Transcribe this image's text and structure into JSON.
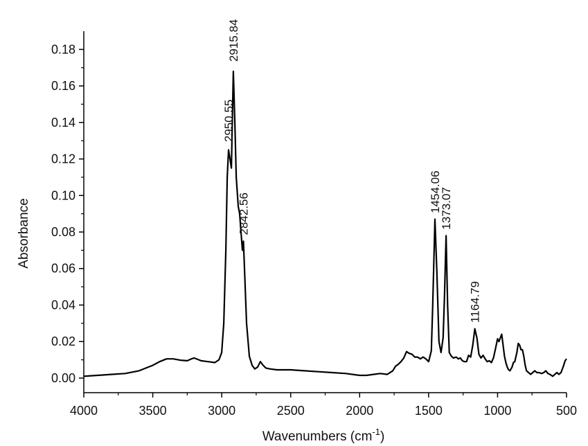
{
  "chart_data": {
    "type": "line",
    "title": "",
    "xlabel": "Wavenumbers (cm",
    "xlabel_sup": "-1",
    "xlabel_close": ")",
    "ylabel": "Absorbance",
    "xlim": [
      4000,
      500
    ],
    "ylim": [
      -0.008,
      0.19
    ],
    "x_reversed": true,
    "grid": false,
    "line_color": "#000000",
    "xticks": [
      4000,
      3500,
      3000,
      2500,
      2000,
      1500,
      1000,
      500
    ],
    "xtick_labels": [
      "4000",
      "3500",
      "3000",
      "2500",
      "2000",
      "1500",
      "1000",
      "500"
    ],
    "yticks": [
      0.0,
      0.02,
      0.04,
      0.06,
      0.08,
      0.1,
      0.12,
      0.14,
      0.16,
      0.18
    ],
    "ytick_labels": [
      "0.00",
      "0.02",
      "0.04",
      "0.06",
      "0.08",
      "0.10",
      "0.12",
      "0.14",
      "0.16",
      "0.18"
    ],
    "annotations": [
      {
        "x": 2950.55,
        "y": 0.127,
        "text": "2950.55"
      },
      {
        "x": 2915.84,
        "y": 0.171,
        "text": "2915.84"
      },
      {
        "x": 2842.56,
        "y": 0.076,
        "text": "2842.56"
      },
      {
        "x": 1454.06,
        "y": 0.088,
        "text": "1454.06"
      },
      {
        "x": 1373.07,
        "y": 0.079,
        "text": "1373.07"
      },
      {
        "x": 1164.79,
        "y": 0.028,
        "text": "1164.79"
      }
    ],
    "series": [
      {
        "x": [
          4000,
          3900,
          3800,
          3700,
          3600,
          3500,
          3450,
          3400,
          3350,
          3300,
          3250,
          3220,
          3200,
          3150,
          3100,
          3050,
          3020,
          3000,
          2985,
          2970,
          2960,
          2950.55,
          2940,
          2930,
          2915.84,
          2905,
          2895,
          2880,
          2870,
          2860,
          2850,
          2842.56,
          2835,
          2820,
          2800,
          2780,
          2760,
          2740,
          2720,
          2700,
          2680,
          2650,
          2600,
          2500,
          2400,
          2300,
          2200,
          2100,
          2000,
          1950,
          1900,
          1850,
          1800,
          1760,
          1740,
          1720,
          1700,
          1680,
          1660,
          1640,
          1620,
          1600,
          1580,
          1560,
          1540,
          1520,
          1500,
          1480,
          1470,
          1454.06,
          1440,
          1425,
          1410,
          1395,
          1385,
          1373.07,
          1362,
          1350,
          1335,
          1320,
          1300,
          1285,
          1270,
          1255,
          1240,
          1225,
          1210,
          1195,
          1180,
          1164.79,
          1150,
          1135,
          1120,
          1105,
          1090,
          1075,
          1060,
          1045,
          1030,
          1015,
          1000,
          990,
          980,
          970,
          960,
          950,
          940,
          930,
          920,
          910,
          895,
          885,
          875,
          860,
          850,
          840,
          830,
          820,
          810,
          800,
          790,
          775,
          760,
          745,
          730,
          715,
          700,
          680,
          665,
          650,
          635,
          620,
          600,
          585,
          570,
          555,
          540,
          525,
          510,
          500
        ],
        "y": [
          0.001,
          0.0015,
          0.002,
          0.0025,
          0.004,
          0.007,
          0.009,
          0.0105,
          0.0105,
          0.0098,
          0.0095,
          0.0105,
          0.011,
          0.0095,
          0.009,
          0.0085,
          0.01,
          0.014,
          0.03,
          0.07,
          0.11,
          0.125,
          0.12,
          0.115,
          0.168,
          0.14,
          0.11,
          0.094,
          0.09,
          0.08,
          0.07,
          0.075,
          0.06,
          0.03,
          0.012,
          0.007,
          0.005,
          0.006,
          0.009,
          0.007,
          0.0055,
          0.005,
          0.0045,
          0.0045,
          0.004,
          0.0035,
          0.003,
          0.0025,
          0.0015,
          0.0015,
          0.002,
          0.0025,
          0.002,
          0.004,
          0.0065,
          0.0075,
          0.009,
          0.011,
          0.0145,
          0.0135,
          0.013,
          0.0115,
          0.0115,
          0.0105,
          0.0115,
          0.0105,
          0.009,
          0.015,
          0.04,
          0.087,
          0.058,
          0.02,
          0.014,
          0.022,
          0.045,
          0.078,
          0.04,
          0.014,
          0.012,
          0.011,
          0.0115,
          0.0105,
          0.011,
          0.0095,
          0.009,
          0.009,
          0.0125,
          0.0115,
          0.018,
          0.027,
          0.022,
          0.013,
          0.011,
          0.0125,
          0.0105,
          0.009,
          0.0095,
          0.0085,
          0.011,
          0.016,
          0.0215,
          0.02,
          0.022,
          0.024,
          0.018,
          0.012,
          0.0085,
          0.006,
          0.0045,
          0.004,
          0.006,
          0.0085,
          0.009,
          0.014,
          0.019,
          0.018,
          0.0155,
          0.0155,
          0.012,
          0.007,
          0.004,
          0.003,
          0.002,
          0.003,
          0.004,
          0.003,
          0.003,
          0.0025,
          0.003,
          0.004,
          0.0025,
          0.002,
          0.001,
          0.002,
          0.003,
          0.002,
          0.003,
          0.006,
          0.0095,
          0.0105
        ]
      }
    ]
  }
}
